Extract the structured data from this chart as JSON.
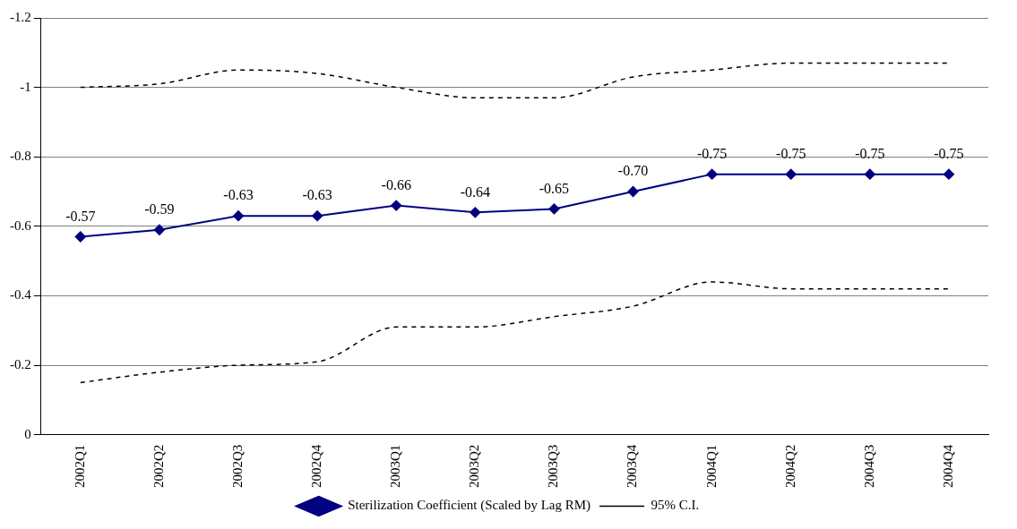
{
  "chart_data": {
    "type": "line",
    "categories": [
      "2002Q1",
      "2002Q2",
      "2002Q3",
      "2002Q4",
      "2003Q1",
      "2003Q2",
      "2003Q3",
      "2003Q4",
      "2004Q1",
      "2004Q2",
      "2004Q3",
      "2004Q4"
    ],
    "series": [
      {
        "name": "Sterilization Coefficient (Scaled by Lag RM)",
        "color": "#000080",
        "marker": "diamond",
        "line_style": "solid",
        "values": [
          -0.57,
          -0.59,
          -0.63,
          -0.63,
          -0.66,
          -0.64,
          -0.65,
          -0.7,
          -0.75,
          -0.75,
          -0.75,
          -0.75
        ],
        "value_labels": [
          "-0.57",
          "-0.59",
          "-0.63",
          "-0.63",
          "-0.66",
          "-0.64",
          "-0.65",
          "-0.70",
          "-0.75",
          "-0.75",
          "-0.75",
          "-0.75"
        ]
      },
      {
        "color": "#000000",
        "marker": "none",
        "line_style": "dashed",
        "values": [
          -1.0,
          -1.01,
          -1.05,
          -1.04,
          -1.0,
          -0.97,
          -0.97,
          -1.03,
          -1.05,
          -1.07,
          -1.07,
          -1.07
        ]
      },
      {
        "name": "95% C.I.",
        "color": "#000000",
        "marker": "none",
        "line_style": "dashed",
        "values": [
          -0.15,
          -0.18,
          -0.2,
          -0.21,
          -0.31,
          -0.31,
          -0.34,
          -0.37,
          -0.44,
          -0.42,
          -0.42,
          -0.42
        ]
      }
    ],
    "ylim": [
      0,
      -1.2
    ],
    "yticks": [
      0,
      -0.2,
      -0.4,
      -0.6,
      -0.8,
      -1,
      -1.2
    ],
    "grid": "y",
    "legend": "bottom"
  }
}
